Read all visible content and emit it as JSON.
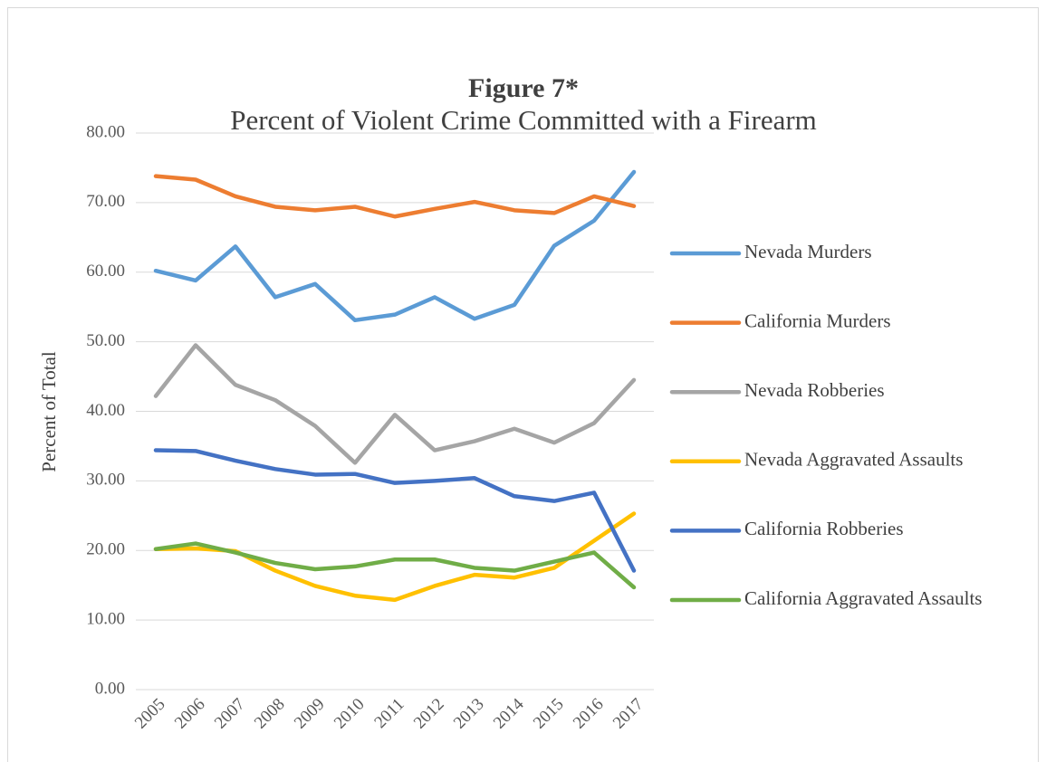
{
  "chart_data": {
    "type": "line",
    "title": "Figure 7*",
    "subtitle": "Percent of Violent Crime Committed with a Firearm",
    "y_label": "Percent of Total",
    "categories": [
      "2005",
      "2006",
      "2007",
      "2008",
      "2009",
      "2010",
      "2011",
      "2012",
      "2013",
      "2014",
      "2015",
      "2016",
      "2017"
    ],
    "series": [
      {
        "name": "Nevada Murders",
        "color": "#5b9bd5",
        "values": [
          60.2,
          58.8,
          63.7,
          56.4,
          58.3,
          53.1,
          53.9,
          56.4,
          53.3,
          55.3,
          63.8,
          67.4,
          74.4
        ]
      },
      {
        "name": "California Murders",
        "color": "#ed7d31",
        "values": [
          73.8,
          73.3,
          70.9,
          69.4,
          68.9,
          69.4,
          68.0,
          69.1,
          70.1,
          68.9,
          68.5,
          70.9,
          69.5
        ]
      },
      {
        "name": "Nevada Robberies",
        "color": "#a5a5a5",
        "values": [
          42.2,
          49.5,
          43.8,
          41.6,
          37.9,
          32.6,
          39.5,
          34.4,
          35.7,
          37.5,
          35.5,
          38.3,
          44.5
        ]
      },
      {
        "name": "Nevada Aggravated Assaults",
        "color": "#ffc000",
        "values": [
          20.2,
          20.3,
          19.9,
          17.1,
          14.9,
          13.5,
          12.9,
          14.9,
          16.5,
          16.1,
          17.5,
          21.4,
          25.3
        ]
      },
      {
        "name": "California Robberies",
        "color": "#4472c4",
        "values": [
          34.4,
          34.3,
          32.9,
          31.7,
          30.9,
          31.0,
          29.7,
          30.0,
          30.4,
          27.8,
          27.1,
          28.3,
          17.1
        ]
      },
      {
        "name": "California Aggravated Assaults",
        "color": "#70ad47",
        "values": [
          20.2,
          21.0,
          19.7,
          18.2,
          17.3,
          17.7,
          18.7,
          18.7,
          17.5,
          17.1,
          18.4,
          19.7,
          14.7
        ]
      }
    ],
    "ylim": [
      0,
      80
    ],
    "yticks": [
      {
        "value": 0,
        "label": "0.00"
      },
      {
        "value": 10,
        "label": "10.00"
      },
      {
        "value": 20,
        "label": "20.00"
      },
      {
        "value": 30,
        "label": "30.00"
      },
      {
        "value": 40,
        "label": "40.00"
      },
      {
        "value": 50,
        "label": "50.00"
      },
      {
        "value": 60,
        "label": "60.00"
      },
      {
        "value": 70,
        "label": "70.00"
      },
      {
        "value": 80,
        "label": "80.00"
      }
    ],
    "grid": true,
    "legend": "right"
  }
}
